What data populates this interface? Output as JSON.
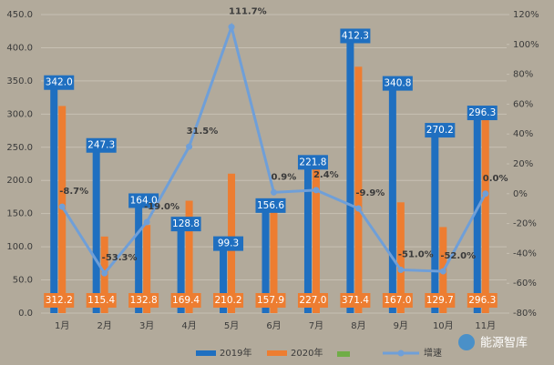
{
  "chart_data": {
    "type": "bar-line",
    "categories": [
      "1月",
      "2月",
      "3月",
      "4月",
      "5月",
      "6月",
      "7月",
      "8月",
      "9月",
      "10月",
      "11月"
    ],
    "series": [
      {
        "name": "2019年",
        "color": "#1f6fc0",
        "values": [
          342.0,
          247.3,
          164.0,
          128.8,
          99.3,
          156.6,
          221.8,
          412.3,
          340.8,
          270.2,
          296.3
        ],
        "value_labels": [
          "342.0",
          "247.3",
          "164.0",
          "128.8",
          "99.3",
          "156.6",
          "221.8",
          "412.3",
          "340.8",
          "270.2",
          "296.3"
        ]
      },
      {
        "name": "2020年",
        "color": "#ed7d31",
        "values": [
          312.2,
          115.4,
          132.8,
          169.4,
          210.2,
          157.9,
          227.0,
          371.4,
          167.0,
          129.7,
          296.3
        ],
        "value_labels": [
          "312.2",
          "115.4",
          "132.8",
          "169.4",
          "210.2",
          "157.9",
          "227.0",
          "371.4",
          "167.0",
          "129.7",
          "296.3"
        ]
      },
      {
        "name": "增速",
        "color": "#6f9fd8",
        "axis": "y2",
        "values": [
          -8.7,
          -53.3,
          -19.0,
          31.5,
          111.7,
          0.9,
          2.4,
          -9.9,
          -51.0,
          -52.0,
          0.0
        ],
        "value_labels": [
          "-8.7%",
          "-53.3%",
          "-19.0%",
          "31.5%",
          "111.7%",
          "0.9%",
          "2.4%",
          "-9.9%",
          "-51.0%",
          "-52.0%",
          "0.0%"
        ]
      }
    ],
    "ylim": [
      0,
      450
    ],
    "yticks": [
      {
        "value": 0,
        "label": "0.0"
      },
      {
        "value": 50,
        "label": "50.0"
      },
      {
        "value": 100,
        "label": "100.0"
      },
      {
        "value": 150,
        "label": "150.0"
      },
      {
        "value": 200,
        "label": "200.0"
      },
      {
        "value": 250,
        "label": "250.0"
      },
      {
        "value": 300,
        "label": "300.0"
      },
      {
        "value": 350,
        "label": "350.0"
      },
      {
        "value": 400,
        "label": "400.0"
      },
      {
        "value": 450,
        "label": "450.0"
      }
    ],
    "y2lim": [
      -80,
      120
    ],
    "y2ticks": [
      {
        "value": -80,
        "label": "-80%"
      },
      {
        "value": -60,
        "label": "-60%"
      },
      {
        "value": -40,
        "label": "-40%"
      },
      {
        "value": -20,
        "label": "-20%"
      },
      {
        "value": 0,
        "label": "0%"
      },
      {
        "value": 20,
        "label": "20%"
      },
      {
        "value": 40,
        "label": "40%"
      },
      {
        "value": 60,
        "label": "60%"
      },
      {
        "value": 80,
        "label": "80%"
      },
      {
        "value": 100,
        "label": "100%"
      },
      {
        "value": 120,
        "label": "120%"
      }
    ],
    "grid": true,
    "legend": "bottom",
    "watermark": "能源智库"
  }
}
